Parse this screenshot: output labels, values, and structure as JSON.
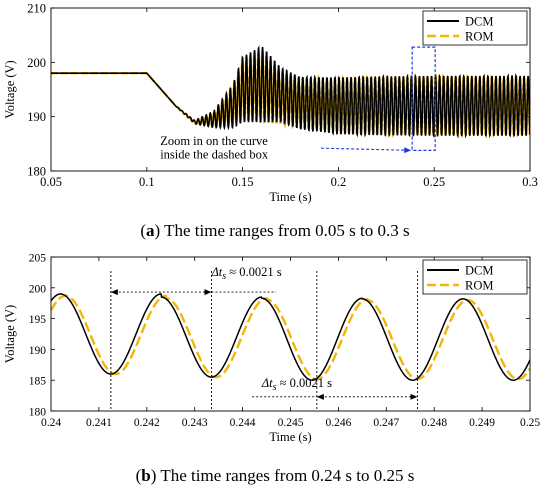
{
  "chart_data": [
    {
      "type": "line",
      "caption_letter": "a",
      "caption_text": "The time ranges from 0.05 s to 0.3 s",
      "xlabel": "Time (s)",
      "ylabel": "Voltage (V)",
      "xlim": [
        0.05,
        0.3
      ],
      "ylim": [
        180,
        210
      ],
      "xticks": [
        0.05,
        0.1,
        0.15,
        0.2,
        0.25,
        0.3
      ],
      "xtick_labels": [
        "0.05",
        "0.1",
        "0.15",
        "0.2",
        "0.25",
        "0.3"
      ],
      "yticks": [
        180,
        190,
        200,
        210
      ],
      "ytick_labels": [
        "180",
        "190",
        "200",
        "210"
      ],
      "legend_position": "top-right",
      "series": [
        {
          "name": "DCM",
          "color": "#000000",
          "style": "solid",
          "x": [
            0.05,
            0.1,
            0.115,
            0.125,
            0.135,
            0.145,
            0.15,
            0.16,
            0.17,
            0.18,
            0.2,
            0.22,
            0.25,
            0.3
          ],
          "y_center": [
            198,
            198,
            192,
            189,
            189.5,
            192,
            195,
            196,
            194,
            192.5,
            192,
            192,
            192,
            192
          ],
          "y_amplitude": [
            0,
            0,
            0,
            0.3,
            1.5,
            4,
            6,
            7,
            5,
            4.8,
            5.2,
            5.4,
            5.5,
            5.5
          ]
        },
        {
          "name": "ROM",
          "color": "#F2B705",
          "style": "dashed",
          "x": [
            0.05,
            0.1,
            0.115,
            0.125,
            0.135,
            0.145,
            0.15,
            0.16,
            0.17,
            0.18,
            0.2,
            0.22,
            0.25,
            0.3
          ],
          "y_center": [
            198,
            198,
            192,
            189,
            189.5,
            192,
            195,
            195.5,
            193.5,
            192.5,
            192,
            192,
            192,
            192
          ],
          "y_amplitude": [
            0,
            0,
            0,
            0.3,
            1.3,
            3.5,
            5.5,
            6.5,
            4.8,
            4.6,
            5,
            5.2,
            5.3,
            5.3
          ]
        }
      ],
      "oscillation_period": 0.0021,
      "annotations": [
        {
          "text": "Zoom in on the curve",
          "x": 0.107,
          "y": 184.8
        },
        {
          "text": "inside the dashed box",
          "x": 0.107,
          "y": 182.3
        }
      ],
      "dashed_box": {
        "x": [
          0.2385,
          0.2505
        ],
        "y": [
          183.8,
          202.8
        ]
      },
      "arrow": {
        "from": [
          0.191,
          184.2
        ],
        "to": [
          0.238,
          183.8
        ]
      }
    },
    {
      "type": "line",
      "caption_letter": "b",
      "caption_text": "The time ranges from 0.24 s to 0.25 s",
      "xlabel": "Time (s)",
      "ylabel": "Voltage (V)",
      "xlim": [
        0.24,
        0.25
      ],
      "ylim": [
        180,
        205
      ],
      "xticks": [
        0.24,
        0.241,
        0.242,
        0.243,
        0.244,
        0.245,
        0.246,
        0.247,
        0.248,
        0.249,
        0.25
      ],
      "xtick_labels": [
        "0.24",
        "0.241",
        "0.242",
        "0.243",
        "0.244",
        "0.245",
        "0.246",
        "0.247",
        "0.248",
        "0.249",
        "0.25"
      ],
      "yticks": [
        180,
        185,
        190,
        195,
        200,
        205
      ],
      "ytick_labels": [
        "180",
        "185",
        "190",
        "195",
        "200",
        "205"
      ],
      "legend_position": "top-right",
      "series": [
        {
          "name": "DCM",
          "color": "#000000",
          "style": "solid",
          "period": 0.0021,
          "first_minimum": 0.24125,
          "min_values": [
            186,
            185.5,
            185,
            185,
            185
          ],
          "max_values": [
            199,
            198.5,
            198.3,
            198.2,
            198.2
          ]
        },
        {
          "name": "ROM",
          "color": "#F2B705",
          "style": "dashed",
          "period": 0.0021,
          "first_minimum": 0.24135,
          "min_values": [
            186,
            185.5,
            185.2,
            185.2,
            185.2
          ],
          "max_values": [
            198.7,
            198.3,
            198.1,
            198,
            198
          ]
        }
      ],
      "annotations": [
        {
          "text": "Δt",
          "sub": "s",
          "approx": "≈ 0.0021 s",
          "x": 0.24335,
          "y": 201.9
        },
        {
          "text": "Δt",
          "sub": "s",
          "approx": "≈ 0.0021 s",
          "x": 0.2444,
          "y": 183.9
        }
      ],
      "vlines": [
        0.24125,
        0.24335,
        0.24555,
        0.24765
      ],
      "arrows": [
        {
          "from": 0.24125,
          "to": 0.24335,
          "y": 199.3
        },
        {
          "from": 0.24555,
          "to": 0.24765,
          "y": 182.3
        }
      ]
    }
  ]
}
